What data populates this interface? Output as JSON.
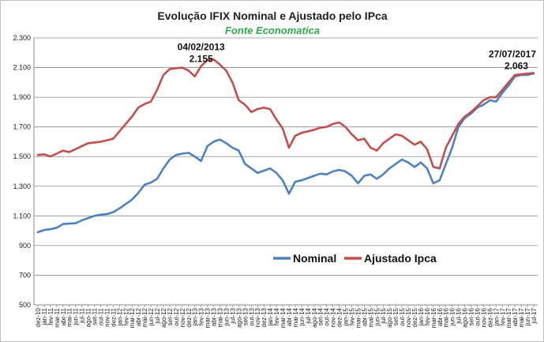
{
  "chart_data": {
    "type": "line",
    "title": "Evolução IFIX Nominal e Ajustado pelo IPca",
    "subtitle": "Fonte Economatica",
    "ylim": [
      500,
      2300
    ],
    "yticks": [
      "500",
      "700",
      "900",
      "1.100",
      "1.300",
      "1.500",
      "1.700",
      "1.900",
      "2.100",
      "2.300"
    ],
    "ytick_values": [
      500,
      700,
      900,
      1100,
      1300,
      1500,
      1700,
      1900,
      2100,
      2300
    ],
    "grid": true,
    "legend_position": "bottom-center",
    "x_categories": [
      "dez-10",
      "jan-11",
      "fev-11",
      "mar-11",
      "abr-11",
      "mai-11",
      "jun-11",
      "jul-11",
      "ago-11",
      "set-11",
      "out-11",
      "nov-11",
      "dez-11",
      "jan-12",
      "fev-12",
      "mar-12",
      "abr-12",
      "mai-12",
      "jun-12",
      "jul-12",
      "ago-12",
      "set-12",
      "out-12",
      "nov-12",
      "dez-12",
      "jan-13",
      "fev-13",
      "mar-13",
      "abr-13",
      "mai-13",
      "jun-13",
      "jul-13",
      "ago-13",
      "set-13",
      "out-13",
      "nov-13",
      "dez-13",
      "jan-14",
      "fev-14",
      "mar-14",
      "abr-14",
      "mai-14",
      "jun-14",
      "jul-14",
      "ago-14",
      "set-14",
      "out-14",
      "nov-14",
      "dez-14",
      "jan-15",
      "fev-15",
      "mar-15",
      "abr-15",
      "mai-15",
      "jun-15",
      "jul-15",
      "ago-15",
      "set-15",
      "out-15",
      "nov-15",
      "dez-15",
      "jan-16",
      "fev-16",
      "mar-16",
      "abr-16",
      "mai-16",
      "jun-16",
      "jul-16",
      "ago-16",
      "set-16",
      "out-16",
      "nov-16",
      "dez-16",
      "jan-17",
      "fev-17",
      "mar-17",
      "abr-17",
      "mai-17",
      "jun-17",
      "jul-17"
    ],
    "xtick_labels": [
      "dez-10",
      "jan-11",
      "fev-11",
      "mar-11",
      "abr-11",
      "mai-11",
      "jun-11",
      "jul-11",
      "ago-11",
      "set-11",
      "out-11",
      "nov-11",
      "dez-11",
      "jan-12",
      "fev-12",
      "mar-12",
      "abr-12",
      "mai-12",
      "jun-12",
      "jul-12",
      "ago-12",
      "set-12",
      "out-12",
      "nov-12",
      "dez-12",
      "jan-13",
      "fev-13",
      "mar-13",
      "abr-13",
      "mai-13",
      "jun-13",
      "jul-13",
      "ago-13",
      "set-13",
      "out-13",
      "nov-13",
      "dez-13",
      "jan-14",
      "fev-14",
      "mar-14",
      "abr-14",
      "mai-14",
      "jun-14",
      "jul-14",
      "ago-14",
      "set-14",
      "out-14",
      "nov-14",
      "dez-14",
      "jan-15",
      "fev-15",
      "mar-15",
      "abr-15",
      "mai-15",
      "jun-15",
      "jul-15",
      "ago-15",
      "set-15",
      "out-15",
      "nov-15",
      "dez-15",
      "jan-16",
      "fev-16",
      "mar-16",
      "abr-16",
      "mai-16",
      "jun-16",
      "jul-16",
      "ago-16",
      "set-16",
      "out-16",
      "nov-16",
      "dez-16",
      "jan-17",
      "fev-17",
      "mar-17",
      "abr-17",
      "mai-17",
      "jun-17",
      "jul-17"
    ],
    "series": [
      {
        "name": "Nominal",
        "color": "#4f81bd",
        "values": [
          990,
          1005,
          1010,
          1020,
          1045,
          1048,
          1050,
          1070,
          1085,
          1100,
          1108,
          1112,
          1125,
          1150,
          1180,
          1210,
          1255,
          1310,
          1325,
          1350,
          1420,
          1480,
          1510,
          1520,
          1525,
          1500,
          1470,
          1570,
          1600,
          1615,
          1590,
          1560,
          1540,
          1450,
          1420,
          1390,
          1405,
          1420,
          1390,
          1340,
          1250,
          1330,
          1340,
          1355,
          1370,
          1385,
          1380,
          1400,
          1410,
          1400,
          1370,
          1320,
          1370,
          1380,
          1350,
          1380,
          1420,
          1450,
          1480,
          1460,
          1430,
          1460,
          1420,
          1320,
          1340,
          1450,
          1560,
          1700,
          1760,
          1790,
          1830,
          1850,
          1880,
          1870,
          1930,
          1980,
          2040,
          2050,
          2050,
          2060
        ]
      },
      {
        "name": "Ajustado Ipca",
        "color": "#c0504d",
        "values": [
          1510,
          1515,
          1500,
          1520,
          1540,
          1530,
          1550,
          1570,
          1590,
          1595,
          1600,
          1610,
          1620,
          1670,
          1720,
          1770,
          1830,
          1855,
          1870,
          1950,
          2050,
          2090,
          2095,
          2100,
          2080,
          2040,
          2110,
          2150,
          2155,
          2120,
          2080,
          2000,
          1880,
          1850,
          1800,
          1820,
          1830,
          1820,
          1750,
          1690,
          1560,
          1640,
          1660,
          1670,
          1680,
          1695,
          1700,
          1720,
          1730,
          1700,
          1650,
          1610,
          1620,
          1560,
          1540,
          1590,
          1620,
          1650,
          1640,
          1610,
          1580,
          1600,
          1550,
          1430,
          1420,
          1560,
          1640,
          1720,
          1770,
          1800,
          1840,
          1880,
          1900,
          1900,
          1950,
          2000,
          2050,
          2055,
          2060,
          2063
        ]
      }
    ],
    "annotations": [
      {
        "date": "04/02/2013",
        "value": "2.155",
        "category": "fev-13"
      },
      {
        "date": "27/07/2017",
        "value": "2.063",
        "category": "jul-17"
      }
    ]
  }
}
